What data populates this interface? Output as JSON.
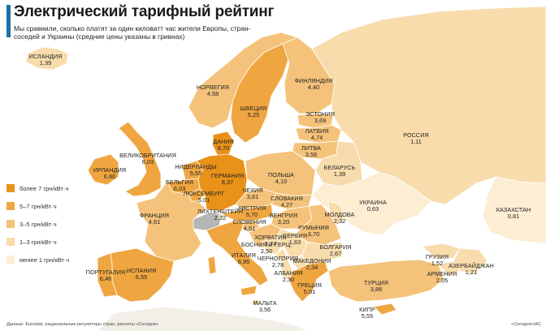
{
  "title": "Электрический тарифный рейтинг",
  "subtitle": "Мы сравнили, сколько платят за один киловатт час жители Европы, стран-соседей и Украины (средние цены указаны в гривнах)",
  "source": "Данные: Eurostat, национальные регуляторы стран, расчеты «Сегодня»",
  "credit": "«Сегодня»/AC",
  "colors": {
    "sea": "#ffffff",
    "land_border": "#ffffff",
    "tier1": "#e8921a",
    "tier2": "#efa640",
    "tier3": "#f4c27a",
    "tier4": "#f8dcac",
    "tier5": "#fcedd3",
    "na": "#b5b5b5"
  },
  "legend": [
    {
      "label": "более 7 грн/кВт·ч",
      "tier": "tier1"
    },
    {
      "label": "5–7 грн/кВт·ч",
      "tier": "tier2"
    },
    {
      "label": "3–5 грн/кВт·ч",
      "tier": "tier3"
    },
    {
      "label": "1–3 грн/кВт·ч",
      "tier": "tier4"
    },
    {
      "label": "менее 1 грн/кВт·ч",
      "tier": "tier5"
    }
  ],
  "countries": [
    {
      "id": "iceland",
      "name": "Исландия",
      "price": "1,39",
      "tier": "tier4"
    },
    {
      "id": "norway",
      "name": "Норвегия",
      "price": "4,58",
      "tier": "tier3"
    },
    {
      "id": "sweden",
      "name": "Швеция",
      "price": "5,25",
      "tier": "tier2"
    },
    {
      "id": "finland",
      "name": "Финляндия",
      "price": "4,40",
      "tier": "tier3"
    },
    {
      "id": "estonia",
      "name": "Эстония",
      "price": "3,69",
      "tier": "tier3"
    },
    {
      "id": "latvia",
      "name": "Латвия",
      "price": "4,74",
      "tier": "tier3"
    },
    {
      "id": "lithuania",
      "name": "Литва",
      "price": "3,56",
      "tier": "tier3"
    },
    {
      "id": "russia",
      "name": "Россия",
      "price": "1,11",
      "tier": "tier4"
    },
    {
      "id": "denmark",
      "name": "Дания",
      "price": "8,70",
      "tier": "tier1"
    },
    {
      "id": "uk",
      "name": "Великобритания",
      "price": "6,03",
      "tier": "tier2"
    },
    {
      "id": "ireland",
      "name": "Ирландия",
      "price": "6,80",
      "tier": "tier2"
    },
    {
      "id": "netherlands",
      "name": "Нидерланды",
      "price": "5,55",
      "tier": "tier2"
    },
    {
      "id": "belgium",
      "name": "Бельгия",
      "price": "6,03",
      "tier": "tier2"
    },
    {
      "id": "germany",
      "name": "Германия",
      "price": "8,37",
      "tier": "tier1"
    },
    {
      "id": "poland",
      "name": "Польша",
      "price": "4,10",
      "tier": "tier3"
    },
    {
      "id": "belarus",
      "name": "Беларусь",
      "price": "1,39",
      "tier": "tier4"
    },
    {
      "id": "luxembourg",
      "name": "Люксембург",
      "price": "5,01",
      "tier": "tier2"
    },
    {
      "id": "czechia",
      "name": "Чехия",
      "price": "3,61",
      "tier": "tier3"
    },
    {
      "id": "slovakia",
      "name": "Словакия",
      "price": "4,27",
      "tier": "tier3"
    },
    {
      "id": "ukraine",
      "name": "Украина",
      "price": "0,63",
      "tier": "tier5"
    },
    {
      "id": "kazakhstan",
      "name": "Казахстан",
      "price": "0,81",
      "tier": "tier5"
    },
    {
      "id": "france",
      "name": "Франция",
      "price": "4,61",
      "tier": "tier3"
    },
    {
      "id": "liechtenstein",
      "name": "Лихтенштейн",
      "price": "2,22",
      "tier": "tier4"
    },
    {
      "id": "austria",
      "name": "Австрия",
      "price": "5,70",
      "tier": "tier2"
    },
    {
      "id": "hungary",
      "name": "Венгрия",
      "price": "3,20",
      "tier": "tier3"
    },
    {
      "id": "moldova",
      "name": "Молдова",
      "price": "2,32",
      "tier": "tier4"
    },
    {
      "id": "slovenia",
      "name": "Словения",
      "price": "4,51",
      "tier": "tier3"
    },
    {
      "id": "croatia",
      "name": "Хорватия",
      "price": "3,74",
      "tier": "tier3"
    },
    {
      "id": "romania",
      "name": "Румыния",
      "price": "3,70",
      "tier": "tier3"
    },
    {
      "id": "serbia",
      "name": "Сербия",
      "price": "1,63",
      "tier": "tier4"
    },
    {
      "id": "bosnia",
      "name": "Босния и Герц.",
      "price": "2,50",
      "tier": "tier4"
    },
    {
      "id": "bulgaria",
      "name": "Болгария",
      "price": "2,67",
      "tier": "tier4"
    },
    {
      "id": "montenegro",
      "name": "Черногория",
      "price": "2,78",
      "tier": "tier4"
    },
    {
      "id": "macedonia",
      "name": "Македония",
      "price": "2,34",
      "tier": "tier4"
    },
    {
      "id": "albania",
      "name": "Албания",
      "price": "2,30",
      "tier": "tier4"
    },
    {
      "id": "italy",
      "name": "Италия",
      "price": "6,95",
      "tier": "tier2"
    },
    {
      "id": "spain",
      "name": "Испания",
      "price": "6,55",
      "tier": "tier2"
    },
    {
      "id": "portugal",
      "name": "Португалия",
      "price": "6,46",
      "tier": "tier2"
    },
    {
      "id": "greece",
      "name": "Греция",
      "price": "5,01",
      "tier": "tier2"
    },
    {
      "id": "turkey",
      "name": "Турция",
      "price": "3,86",
      "tier": "tier3"
    },
    {
      "id": "georgia",
      "name": "Грузия",
      "price": "1,52",
      "tier": "tier4"
    },
    {
      "id": "armenia",
      "name": "Армения",
      "price": "2,05",
      "tier": "tier4"
    },
    {
      "id": "azerbaijan",
      "name": "Азербайджан",
      "price": "1,21",
      "tier": "tier4"
    },
    {
      "id": "malta",
      "name": "Мальта",
      "price": "3,56",
      "tier": "tier3"
    },
    {
      "id": "cyprus",
      "name": "Кипр",
      "price": "5,55",
      "tier": "tier2"
    }
  ]
}
